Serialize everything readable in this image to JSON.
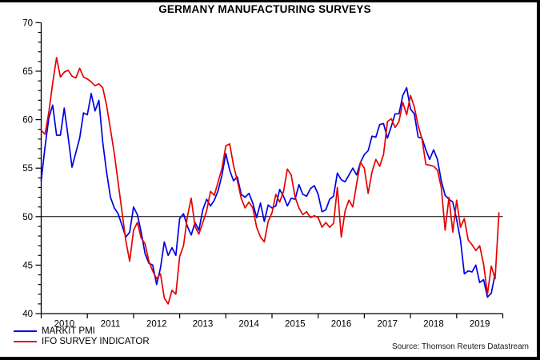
{
  "title": "GERMANY MANUFACTURING SURVEYS",
  "source": "Source: Thomson Reuters Datastream",
  "chart_data": {
    "type": "line",
    "title": "GERMANY MANUFACTURING SURVEYS",
    "xlabel": "",
    "ylabel": "",
    "ylim": [
      40,
      70
    ],
    "y_major_ticks": [
      40,
      45,
      50,
      55,
      60,
      65,
      70
    ],
    "y_minor_tick_step": 1,
    "reference_line_y": 50,
    "grid": false,
    "legend_position": "bottom-left",
    "x_tick_years": [
      "2010",
      "2011",
      "2012",
      "2013",
      "2014",
      "2015",
      "2016",
      "2017",
      "2018",
      "2019"
    ],
    "x_monthly_start": "2010-01",
    "series": [
      {
        "name": "MARKIT PMI",
        "color": "#0000E6",
        "x_end": "2019-11",
        "values": [
          53.7,
          57.2,
          60.2,
          61.5,
          58.4,
          58.4,
          61.2,
          58.2,
          55.1,
          56.6,
          58.1,
          60.7,
          60.5,
          62.7,
          60.9,
          62.0,
          57.7,
          54.6,
          52.0,
          50.9,
          50.3,
          49.1,
          47.9,
          48.4,
          51.0,
          50.2,
          48.4,
          46.2,
          45.2,
          45.0,
          43.0,
          44.7,
          47.4,
          46.0,
          46.8,
          46.0,
          49.8,
          50.3,
          49.0,
          48.1,
          49.4,
          48.6,
          50.7,
          51.8,
          51.1,
          51.7,
          52.7,
          54.3,
          56.5,
          54.8,
          53.7,
          54.1,
          52.3,
          52.0,
          52.4,
          51.4,
          49.9,
          51.4,
          49.5,
          51.2,
          50.9,
          51.1,
          52.8,
          52.1,
          51.1,
          51.9,
          51.8,
          53.3,
          52.3,
          52.1,
          52.9,
          53.2,
          52.3,
          50.5,
          50.7,
          51.8,
          52.1,
          54.5,
          53.8,
          53.6,
          54.3,
          55.0,
          54.3,
          55.6,
          56.4,
          56.8,
          58.3,
          58.2,
          59.5,
          59.6,
          58.1,
          59.3,
          60.6,
          60.6,
          62.5,
          63.3,
          61.1,
          60.6,
          58.2,
          58.1,
          56.9,
          55.9,
          56.9,
          55.9,
          53.7,
          52.2,
          51.8,
          51.5,
          49.7,
          47.6,
          44.1,
          44.4,
          44.3,
          45.0,
          43.2,
          43.5,
          41.7,
          42.1,
          44.1
        ]
      },
      {
        "name": "IFO SURVEY INDICATOR",
        "color": "#E60000",
        "x_end": "2019-12",
        "values": [
          58.9,
          58.5,
          60.8,
          63.8,
          66.4,
          64.4,
          64.9,
          65.1,
          64.5,
          64.3,
          65.3,
          64.4,
          64.2,
          63.9,
          63.5,
          63.7,
          63.3,
          61.5,
          59.0,
          56.5,
          53.5,
          50.5,
          47.5,
          45.4,
          48.6,
          49.4,
          47.8,
          47.2,
          45.4,
          44.4,
          43.6,
          44.1,
          41.6,
          41.0,
          42.4,
          42.0,
          45.9,
          47.0,
          50.0,
          51.9,
          49.0,
          48.2,
          49.4,
          50.6,
          52.6,
          52.2,
          53.6,
          55.0,
          57.3,
          57.5,
          55.3,
          53.7,
          51.9,
          50.9,
          51.5,
          50.9,
          48.9,
          47.9,
          47.4,
          49.5,
          50.4,
          52.3,
          51.5,
          52.6,
          54.9,
          54.3,
          52.0,
          50.9,
          50.2,
          50.5,
          49.9,
          50.1,
          49.9,
          48.9,
          49.4,
          48.9,
          49.3,
          53.0,
          47.9,
          50.6,
          51.7,
          51.0,
          53.4,
          55.6,
          55.0,
          52.4,
          54.6,
          55.9,
          55.2,
          56.4,
          59.8,
          60.1,
          59.2,
          59.8,
          61.8,
          60.5,
          62.5,
          61.3,
          59.4,
          58.0,
          55.4,
          55.3,
          55.2,
          54.8,
          53.0,
          48.6,
          52.0,
          48.4,
          51.7,
          48.9,
          49.8,
          47.6,
          47.1,
          46.5,
          47.0,
          45.1,
          42.0,
          44.9,
          43.6,
          50.4
        ]
      }
    ]
  }
}
